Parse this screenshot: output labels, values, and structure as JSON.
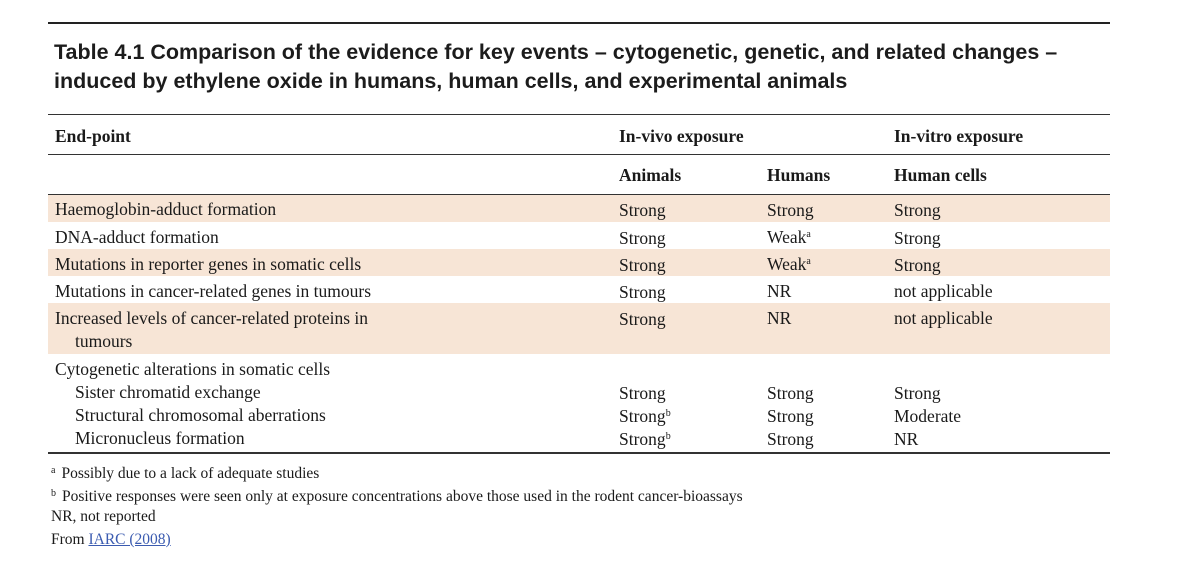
{
  "table": {
    "title": "Table 4.1 Comparison of the evidence for key events – cytogenetic, genetic, and related changes – induced by ethylene oxide in humans, human cells, and experimental animals",
    "header": {
      "endpoint": "End-point",
      "in_vivo": "In-vivo exposure",
      "in_vitro": "In-vitro exposure",
      "animals": "Animals",
      "humans": "Humans",
      "human_cells": "Human cells"
    },
    "rows": [
      {
        "endpoint": "Haemoglobin-adduct formation",
        "animals": "Strong",
        "humans": "Strong",
        "humans_note": "",
        "human_cells": "Strong"
      },
      {
        "endpoint": "DNA-adduct formation",
        "animals": "Strong",
        "humans": "Weak",
        "humans_note": "a",
        "human_cells": "Strong"
      },
      {
        "endpoint": "Mutations in reporter genes in somatic cells",
        "animals": "Strong",
        "humans": "Weak",
        "humans_note": "a",
        "human_cells": "Strong"
      },
      {
        "endpoint": "Mutations in cancer-related genes in tumours",
        "animals": "Strong",
        "humans": "NR",
        "humans_note": "",
        "human_cells": "not applicable"
      },
      {
        "endpoint_line1": "Increased levels of cancer-related proteins in",
        "endpoint_line2": "tumours",
        "animals": "Strong",
        "humans": "NR",
        "human_cells": "not applicable"
      }
    ],
    "cytogenetic": {
      "heading": "Cytogenetic alterations in somatic cells",
      "items": [
        {
          "endpoint": "Sister chromatid exchange",
          "animals": "Strong",
          "animals_note": "",
          "humans": "Strong",
          "human_cells": "Strong"
        },
        {
          "endpoint": "Structural chromosomal aberrations",
          "animals": "Strong",
          "animals_note": "b",
          "humans": "Strong",
          "human_cells": "Moderate"
        },
        {
          "endpoint": "Micronucleus formation",
          "animals": "Strong",
          "animals_note": "b",
          "humans": "Strong",
          "human_cells": "NR"
        }
      ]
    },
    "footnotes": {
      "a_mark": "a",
      "a_text": "Possibly due to a lack of adequate studies",
      "b_mark": "b",
      "b_text": "Positive responses were seen only at exposure concentrations above those used in the rodent cancer-bioassays",
      "nr_text": "NR, not reported",
      "source_prefix": "From",
      "source_link": "IARC (2008)"
    },
    "colors": {
      "shade": "#f7e5d6",
      "link": "#3b5bb0"
    }
  }
}
